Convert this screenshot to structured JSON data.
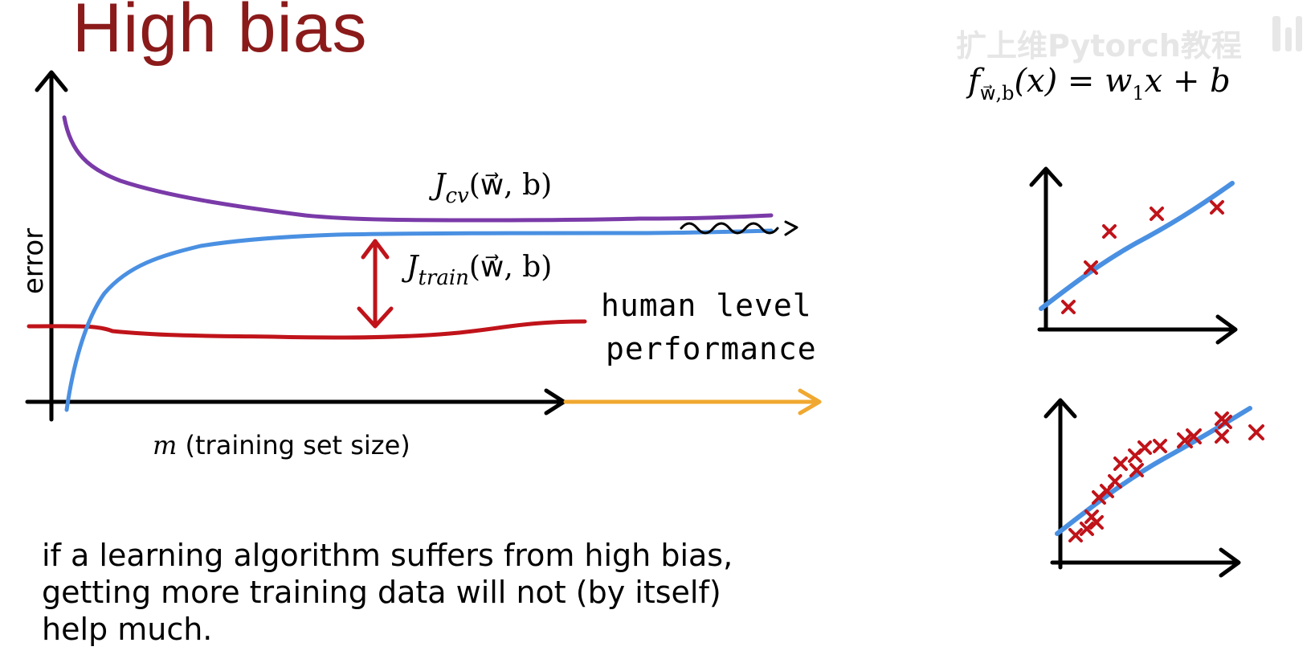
{
  "title": "High bias",
  "watermark": "扩上维Pytorch教程",
  "formula": {
    "f": "f",
    "sub": "w⃗,b",
    "rest_1": "(x) = w",
    "rest_sub": "1",
    "rest_2": "x + b"
  },
  "main_plot": {
    "y_label": "error",
    "x_label_var": "m",
    "x_label_text": " (training set size)",
    "jcv_label": {
      "prefix": "J",
      "sub": "cv",
      "args": "(w⃗, b)"
    },
    "jtrain_label": {
      "prefix": "J",
      "sub": "train",
      "args": "(w⃗, b)"
    },
    "human_label_line1": "human level",
    "human_label_line2": "performance"
  },
  "colors": {
    "title": "#8b1a1a",
    "jcv": "#7a3aa8",
    "jtrain": "#4a90e2",
    "human": "#c0131a",
    "extension_arrow": "#f0a830",
    "gap_arrow": "#c0131a",
    "points": "#c0131a",
    "fit_line": "#4a90e2"
  },
  "caption": {
    "line1": "if a learning algorithm suffers from high bias,",
    "line2": "getting more training data will not (by itself)",
    "line3": "help much."
  }
}
